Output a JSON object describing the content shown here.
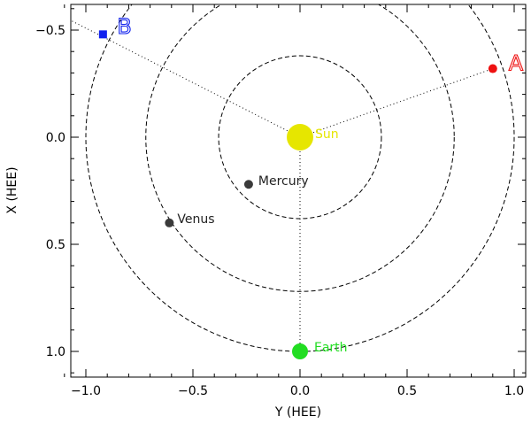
{
  "chart_data": {
    "type": "scatter",
    "xlabel": "Y (HEE)",
    "ylabel": "X (HEE)",
    "xlim": [
      -1.1,
      1.05
    ],
    "ylim": [
      -0.62,
      1.12
    ],
    "y_inverted": true,
    "x_ticks": [
      {
        "v": -1.0,
        "label": "−1.0"
      },
      {
        "v": -0.5,
        "label": "−0.5"
      },
      {
        "v": 0.0,
        "label": "0.0"
      },
      {
        "v": 0.5,
        "label": "0.5"
      },
      {
        "v": 1.0,
        "label": "1.0"
      }
    ],
    "y_ticks": [
      {
        "v": -0.5,
        "label": "−0.5"
      },
      {
        "v": 0.0,
        "label": "0.0"
      },
      {
        "v": 0.5,
        "label": "0.5"
      },
      {
        "v": 1.0,
        "label": "1.0"
      }
    ],
    "orbits": [
      {
        "name": "mercury-orbit",
        "radius": 0.38
      },
      {
        "name": "venus-orbit",
        "radius": 0.72
      },
      {
        "name": "earth-orbit",
        "radius": 1.0
      }
    ],
    "bodies": [
      {
        "name": "sun",
        "label": "Sun",
        "y": 0.0,
        "x": 0.0,
        "color": "#e6e600",
        "label_color": "#e6e600",
        "size": "large"
      },
      {
        "name": "mercury",
        "label": "Mercury",
        "y": -0.24,
        "x": 0.22,
        "color": "#3a3a3a",
        "label_color": "#222222",
        "size": "small"
      },
      {
        "name": "venus",
        "label": "Venus",
        "y": -0.61,
        "x": 0.4,
        "color": "#3a3a3a",
        "label_color": "#222222",
        "size": "small"
      },
      {
        "name": "earth",
        "label": "Earth",
        "y": 0.0,
        "x": 1.0,
        "color": "#22dd22",
        "label_color": "#22dd22",
        "size": "medium"
      },
      {
        "name": "stereo-a",
        "label": "A",
        "y": 0.9,
        "x": -0.32,
        "color": "#ee1111",
        "label_color": "#ee1111",
        "size": "probe"
      },
      {
        "name": "stereo-b",
        "label": "B",
        "y": -0.92,
        "x": -0.48,
        "color": "#1122ee",
        "label_color": "#1122ee",
        "size": "probe"
      }
    ],
    "sight_lines": [
      {
        "name": "sun-to-a-line",
        "from": [
          0.0,
          0.0
        ],
        "to": [
          0.9,
          -0.32
        ]
      },
      {
        "name": "sun-to-b-line",
        "from": [
          0.0,
          0.0
        ],
        "to": [
          -1.08,
          -0.55
        ]
      },
      {
        "name": "sun-to-earth-line",
        "from": [
          0.0,
          0.0
        ],
        "to": [
          0.0,
          1.0
        ]
      }
    ]
  }
}
